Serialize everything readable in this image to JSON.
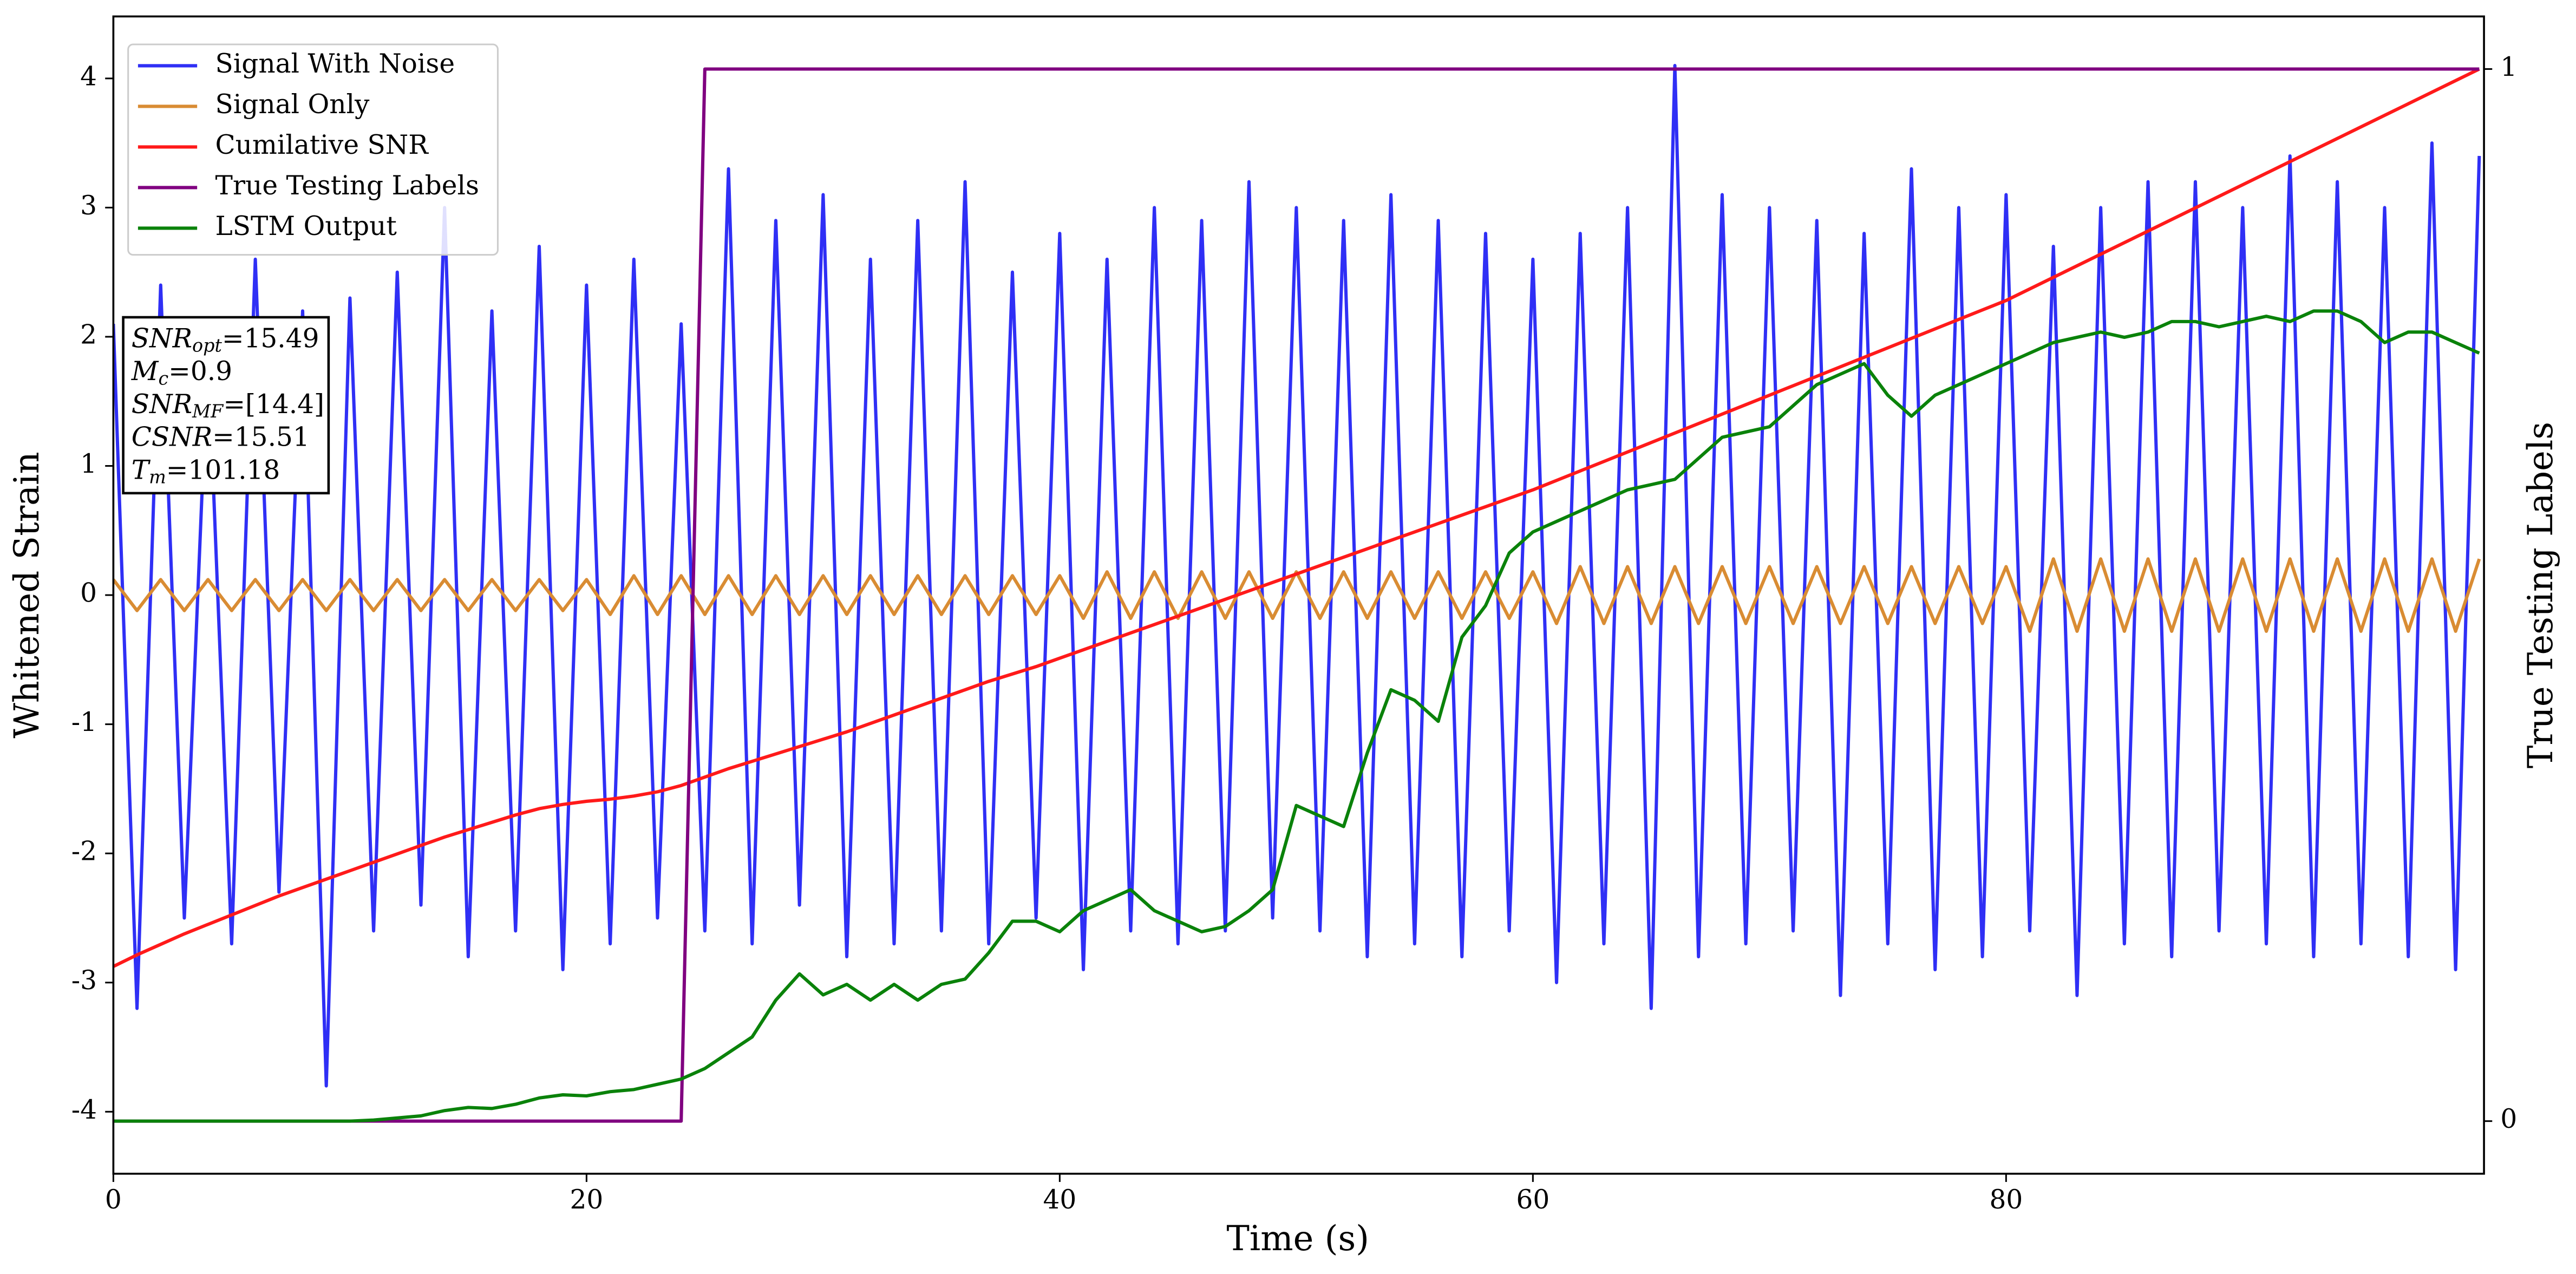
{
  "chart_data": {
    "type": "line",
    "xlabel": "Time (s)",
    "ylabel": "Whitened Strain",
    "y2label": "True Testing Labels",
    "xlim": [
      0,
      100.2
    ],
    "ylim": [
      -4.48,
      4.48
    ],
    "y2lim": [
      -0.05,
      1.05
    ],
    "xticks": [
      0,
      20,
      40,
      60,
      80
    ],
    "yticks": [
      -4,
      -3,
      -2,
      -1,
      0,
      1,
      2,
      3,
      4
    ],
    "y2ticks": [
      0,
      1
    ],
    "legend": "upper left",
    "x": [
      0,
      1,
      2,
      3,
      4,
      5,
      6,
      7,
      8,
      9,
      10,
      11,
      12,
      13,
      14,
      15,
      16,
      17,
      18,
      19,
      20,
      21,
      22,
      23,
      24,
      25,
      26,
      27,
      28,
      29,
      30,
      31,
      32,
      33,
      34,
      35,
      36,
      37,
      38,
      39,
      40,
      41,
      42,
      43,
      44,
      45,
      46,
      47,
      48,
      49,
      50,
      51,
      52,
      53,
      54,
      55,
      56,
      57,
      58,
      59,
      60,
      61,
      62,
      63,
      64,
      65,
      66,
      67,
      68,
      69,
      70,
      71,
      72,
      73,
      74,
      75,
      76,
      77,
      78,
      79,
      80,
      81,
      82,
      83,
      84,
      85,
      86,
      87,
      88,
      89,
      90,
      91,
      92,
      93,
      94,
      95,
      96,
      97,
      98,
      99,
      100
    ],
    "series": [
      {
        "name": "Signal With Noise",
        "color": "#2f2ff5",
        "values": [
          2.1,
          -3.2,
          2.4,
          -2.5,
          1.9,
          -2.7,
          2.6,
          -2.3,
          2.2,
          -3.8,
          2.3,
          -2.6,
          2.5,
          -2.4,
          3.0,
          -2.8,
          2.2,
          -2.6,
          2.7,
          -2.9,
          2.4,
          -2.7,
          2.6,
          -2.5,
          2.1,
          -2.6,
          3.3,
          -2.7,
          2.9,
          -2.4,
          3.1,
          -2.8,
          2.6,
          -2.7,
          2.9,
          -2.6,
          3.2,
          -2.7,
          2.5,
          -2.5,
          2.8,
          -2.9,
          2.6,
          -2.6,
          3.0,
          -2.7,
          2.9,
          -2.6,
          3.2,
          -2.5,
          3.0,
          -2.6,
          2.9,
          -2.8,
          3.1,
          -2.7,
          2.9,
          -2.8,
          2.8,
          -2.6,
          2.6,
          -3.0,
          2.8,
          -2.7,
          3.0,
          -3.2,
          4.1,
          -2.8,
          3.1,
          -2.7,
          3.0,
          -2.6,
          2.9,
          -3.1,
          2.8,
          -2.7,
          3.3,
          -2.9,
          3.0,
          -2.8,
          3.1,
          -2.6,
          2.7,
          -3.1,
          3.0,
          -2.7,
          3.2,
          -2.8,
          3.2,
          -2.6,
          3.0,
          -2.7,
          3.4,
          -2.8,
          3.2,
          -2.7,
          3.0,
          -2.8,
          3.5,
          -2.9,
          3.4
        ]
      },
      {
        "name": "Signal Only",
        "color": "#d98c33",
        "values": [
          0.12,
          -0.12,
          0.12,
          -0.12,
          0.12,
          -0.12,
          0.12,
          -0.12,
          0.12,
          -0.12,
          0.12,
          -0.12,
          0.12,
          -0.12,
          0.12,
          -0.12,
          0.12,
          -0.12,
          0.12,
          -0.12,
          0.12,
          -0.15,
          0.15,
          -0.15,
          0.15,
          -0.15,
          0.15,
          -0.15,
          0.15,
          -0.15,
          0.15,
          -0.15,
          0.15,
          -0.15,
          0.15,
          -0.15,
          0.15,
          -0.15,
          0.15,
          -0.15,
          0.15,
          -0.18,
          0.18,
          -0.18,
          0.18,
          -0.18,
          0.18,
          -0.18,
          0.18,
          -0.18,
          0.18,
          -0.18,
          0.18,
          -0.18,
          0.18,
          -0.18,
          0.18,
          -0.18,
          0.18,
          -0.18,
          0.18,
          -0.22,
          0.22,
          -0.22,
          0.22,
          -0.22,
          0.22,
          -0.22,
          0.22,
          -0.22,
          0.22,
          -0.22,
          0.22,
          -0.22,
          0.22,
          -0.22,
          0.22,
          -0.22,
          0.22,
          -0.22,
          0.22,
          -0.28,
          0.28,
          -0.28,
          0.28,
          -0.28,
          0.28,
          -0.28,
          0.28,
          -0.28,
          0.28,
          -0.28,
          0.28,
          -0.28,
          0.28,
          -0.28,
          0.28,
          -0.28,
          0.28,
          -0.28,
          0.28
        ]
      },
      {
        "name": "Cumilative SNR",
        "color": "#ff1a1a",
        "axis": "y2",
        "values": [
          0.147,
          0.158,
          0.168,
          0.178,
          0.187,
          0.196,
          0.205,
          0.214,
          0.222,
          0.23,
          0.238,
          0.246,
          0.254,
          0.262,
          0.27,
          0.277,
          0.284,
          0.291,
          0.297,
          0.301,
          0.304,
          0.306,
          0.309,
          0.313,
          0.319,
          0.327,
          0.335,
          0.342,
          0.349,
          0.356,
          0.363,
          0.37,
          0.378,
          0.386,
          0.394,
          0.402,
          0.41,
          0.418,
          0.425,
          0.432,
          0.44,
          0.448,
          0.456,
          0.464,
          0.472,
          0.48,
          0.488,
          0.496,
          0.504,
          0.512,
          0.52,
          0.528,
          0.536,
          0.544,
          0.552,
          0.56,
          0.568,
          0.576,
          0.584,
          0.592,
          0.6,
          0.609,
          0.618,
          0.627,
          0.636,
          0.645,
          0.654,
          0.663,
          0.672,
          0.681,
          0.69,
          0.699,
          0.708,
          0.717,
          0.726,
          0.735,
          0.744,
          0.753,
          0.762,
          0.771,
          0.78,
          0.791,
          0.802,
          0.813,
          0.824,
          0.835,
          0.846,
          0.857,
          0.868,
          0.879,
          0.89,
          0.901,
          0.912,
          0.923,
          0.934,
          0.945,
          0.956,
          0.967,
          0.978,
          0.989,
          1.0
        ]
      },
      {
        "name": "True Testing Labels",
        "color": "#800080",
        "axis": "y2",
        "values": [
          0,
          0,
          0,
          0,
          0,
          0,
          0,
          0,
          0,
          0,
          0,
          0,
          0,
          0,
          0,
          0,
          0,
          0,
          0,
          0,
          0,
          0,
          0,
          0,
          0,
          1,
          1,
          1,
          1,
          1,
          1,
          1,
          1,
          1,
          1,
          1,
          1,
          1,
          1,
          1,
          1,
          1,
          1,
          1,
          1,
          1,
          1,
          1,
          1,
          1,
          1,
          1,
          1,
          1,
          1,
          1,
          1,
          1,
          1,
          1,
          1,
          1,
          1,
          1,
          1,
          1,
          1,
          1,
          1,
          1,
          1,
          1,
          1,
          1,
          1,
          1,
          1,
          1,
          1,
          1,
          1,
          1,
          1,
          1,
          1,
          1,
          1,
          1,
          1,
          1,
          1,
          1,
          1,
          1,
          1,
          1,
          1,
          1,
          1,
          1,
          1
        ]
      },
      {
        "name": "LSTM Output",
        "color": "#0a820a",
        "axis": "y2",
        "values": [
          0,
          0,
          0,
          0,
          0,
          0,
          0,
          0,
          0,
          0,
          0,
          0.001,
          0.003,
          0.005,
          0.01,
          0.013,
          0.012,
          0.016,
          0.022,
          0.025,
          0.024,
          0.028,
          0.03,
          0.035,
          0.04,
          0.05,
          0.065,
          0.08,
          0.115,
          0.14,
          0.12,
          0.13,
          0.115,
          0.13,
          0.115,
          0.13,
          0.135,
          0.16,
          0.19,
          0.19,
          0.18,
          0.2,
          0.21,
          0.22,
          0.2,
          0.19,
          0.18,
          0.185,
          0.2,
          0.22,
          0.3,
          0.29,
          0.28,
          0.35,
          0.41,
          0.4,
          0.38,
          0.46,
          0.49,
          0.54,
          0.56,
          0.57,
          0.58,
          0.59,
          0.6,
          0.605,
          0.61,
          0.63,
          0.65,
          0.655,
          0.66,
          0.68,
          0.7,
          0.71,
          0.72,
          0.69,
          0.67,
          0.69,
          0.7,
          0.71,
          0.72,
          0.73,
          0.74,
          0.745,
          0.75,
          0.745,
          0.75,
          0.76,
          0.76,
          0.755,
          0.76,
          0.765,
          0.76,
          0.77,
          0.77,
          0.76,
          0.74,
          0.75,
          0.75,
          0.74,
          0.73
        ]
      }
    ],
    "annotations": [
      {
        "text": "SNR",
        "sub": "opt",
        "tail": "=15.49"
      },
      {
        "text": "M",
        "sub": "c",
        "tail": "=0.9"
      },
      {
        "text": "SNR",
        "sub": "MF",
        "tail": "=[14.4]"
      },
      {
        "text": "CSNR",
        "sub": "",
        "tail": "=15.51"
      },
      {
        "text": "T",
        "sub": "m",
        "tail": "=101.18"
      }
    ]
  }
}
